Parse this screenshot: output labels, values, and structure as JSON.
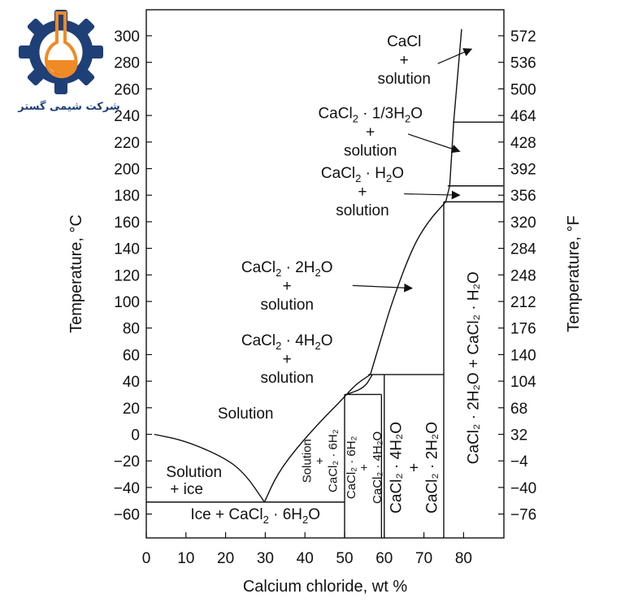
{
  "logo": {
    "text": "شرکت شیمی گستر",
    "gear_color": "#1f3f77",
    "flask_color": "#f08a24"
  },
  "chart_data": {
    "type": "phase-diagram",
    "xlabel": "Calcium chloride, wt %",
    "ylabel_left": "Temperature, °C",
    "ylabel_right": "Temperature, °F",
    "xlim": [
      0,
      90
    ],
    "ylim": [
      -78,
      310
    ],
    "x_ticks": [
      0,
      10,
      20,
      30,
      40,
      50,
      60,
      70,
      80
    ],
    "y_ticks_c": [
      -60,
      -40,
      -20,
      0,
      20,
      40,
      60,
      80,
      100,
      120,
      140,
      160,
      180,
      200,
      220,
      240,
      260,
      280,
      300
    ],
    "y_ticks_f": [
      {
        "c": -60,
        "label": "-76"
      },
      {
        "c": -40,
        "label": "-40"
      },
      {
        "c": -20,
        "label": "-4"
      },
      {
        "c": 0,
        "label": "32"
      },
      {
        "c": 20,
        "label": "68"
      },
      {
        "c": 40,
        "label": "104"
      },
      {
        "c": 60,
        "label": "140"
      },
      {
        "c": 80,
        "label": "176"
      },
      {
        "c": 100,
        "label": "212"
      },
      {
        "c": 120,
        "label": "248"
      },
      {
        "c": 140,
        "label": "284"
      },
      {
        "c": 160,
        "label": "320"
      },
      {
        "c": 180,
        "label": "356"
      },
      {
        "c": 200,
        "label": "392"
      },
      {
        "c": 220,
        "label": "428"
      },
      {
        "c": 240,
        "label": "464"
      },
      {
        "c": 260,
        "label": "500"
      },
      {
        "c": 280,
        "label": "536"
      },
      {
        "c": 300,
        "label": "572"
      }
    ],
    "lines": [
      {
        "name": "ice-liquidus",
        "points": [
          [
            2,
            0
          ],
          [
            10,
            -5
          ],
          [
            20,
            -18
          ],
          [
            25,
            -30
          ],
          [
            29.8,
            -51
          ]
        ]
      },
      {
        "name": "hexahydrate-liquidus",
        "points": [
          [
            29.8,
            -51
          ],
          [
            33,
            -30
          ],
          [
            38,
            -10
          ],
          [
            44,
            10
          ],
          [
            48,
            22
          ],
          [
            50.5,
            30
          ]
        ]
      },
      {
        "name": "hexahydrate-cap",
        "points": [
          [
            50.5,
            30
          ],
          [
            55,
            35
          ],
          [
            57,
            45
          ]
        ]
      },
      {
        "name": "tetrahydrate-liquidus",
        "points": [
          [
            50.5,
            30
          ],
          [
            53,
            38
          ],
          [
            56.5,
            45
          ]
        ]
      },
      {
        "name": "dihydrate-liquidus",
        "points": [
          [
            56.5,
            45
          ],
          [
            59,
            70
          ],
          [
            62,
            100
          ],
          [
            67,
            140
          ],
          [
            71,
            160
          ],
          [
            75.5,
            175
          ]
        ]
      },
      {
        "name": "monohydrate-liquidus",
        "points": [
          [
            75.5,
            175
          ],
          [
            76.5,
            187
          ]
        ]
      },
      {
        "name": "third-hydrate-liquidus",
        "points": [
          [
            76.5,
            187
          ],
          [
            77.5,
            235
          ]
        ]
      },
      {
        "name": "anhydrous-liquidus",
        "points": [
          [
            77.5,
            235
          ],
          [
            79.5,
            305
          ]
        ]
      },
      {
        "name": "eutectic-ice",
        "points": [
          [
            0,
            -51
          ],
          [
            50,
            -51
          ]
        ]
      },
      {
        "name": "peritectic-30",
        "points": [
          [
            50,
            30
          ],
          [
            59.3,
            30
          ]
        ]
      },
      {
        "name": "peritectic-45",
        "points": [
          [
            56,
            45
          ],
          [
            75,
            45
          ]
        ]
      },
      {
        "name": "peritectic-175",
        "points": [
          [
            75,
            175
          ],
          [
            90,
            175
          ]
        ]
      },
      {
        "name": "peritectic-187",
        "points": [
          [
            76,
            187
          ],
          [
            90,
            187
          ]
        ]
      },
      {
        "name": "peritectic-235",
        "points": [
          [
            77.3,
            235
          ],
          [
            90,
            235
          ]
        ]
      },
      {
        "name": "comp-50",
        "points": [
          [
            50,
            -78
          ],
          [
            50,
            30
          ]
        ]
      },
      {
        "name": "comp-59",
        "points": [
          [
            59.3,
            -78
          ],
          [
            59.3,
            30
          ]
        ]
      },
      {
        "name": "comp-60",
        "points": [
          [
            60,
            -78
          ],
          [
            60,
            45
          ]
        ]
      },
      {
        "name": "comp-75",
        "points": [
          [
            75,
            -78
          ],
          [
            75,
            175
          ]
        ]
      }
    ],
    "arrows": [
      {
        "from": [
          73.5,
          279
        ],
        "to": [
          82,
          290
        ]
      },
      {
        "from": [
          66,
          226
        ],
        "to": [
          79,
          213
        ]
      },
      {
        "from": [
          65,
          181
        ],
        "to": [
          79,
          180
        ]
      },
      {
        "from": [
          52,
          112
        ],
        "to": [
          67,
          110
        ]
      }
    ],
    "annotations": [
      {
        "kind": "multi",
        "x": 65,
        "y": 292,
        "lines": [
          "CaCl",
          "+",
          "solution"
        ]
      },
      {
        "kind": "hydrate",
        "x": 56.5,
        "y": 238,
        "formula": {
          "a": "CaCl",
          "b": "2",
          "c": " · 1/3H",
          "d": "2",
          "e": "O"
        },
        "lines": [
          "+",
          "solution"
        ]
      },
      {
        "kind": "hydrate",
        "x": 54.5,
        "y": 193,
        "formula": {
          "a": "CaCl",
          "b": "2",
          "c": " · H",
          "d": "2",
          "e": "O"
        },
        "lines": [
          "+",
          "solution"
        ]
      },
      {
        "kind": "hydrate",
        "x": 35.5,
        "y": 122,
        "formula": {
          "a": "CaCl",
          "b": "2",
          "c": " · 2H",
          "d": "2",
          "e": "O"
        },
        "lines": [
          "+",
          "solution"
        ]
      },
      {
        "kind": "hydrate",
        "x": 35.5,
        "y": 67,
        "formula": {
          "a": "CaCl",
          "b": "2",
          "c": " · 4H",
          "d": "2",
          "e": "O"
        },
        "lines": [
          "+",
          "solution"
        ]
      },
      {
        "kind": "plain",
        "x": 18,
        "y": 12,
        "text": "Solution"
      },
      {
        "kind": "plain",
        "x": 5,
        "y": -32,
        "text": "Solution"
      },
      {
        "kind": "plain",
        "x": 6,
        "y": -45,
        "text": "+ ice"
      },
      {
        "kind": "hydrate-inline",
        "x": 27.5,
        "y": -64,
        "formula": {
          "pre": "Ice + CaCl",
          "b": "2",
          "c": " · 6H",
          "d": "2",
          "e": "O"
        }
      }
    ],
    "vertical_labels": [
      {
        "x": 43.5,
        "y": -20,
        "lines": [
          "Solution",
          "+",
          "CaCl₂ · 6H₂"
        ],
        "size": "small"
      },
      {
        "x": 54.7,
        "y": -25,
        "lines": [
          "CaCl₂ · 6H₂",
          "+",
          "CaCl₂ · 4H₂O"
        ],
        "size": "small"
      },
      {
        "x": 67.5,
        "y": -25,
        "lines": [
          "CaCl₂ · 4H₂O",
          "+",
          "CaCl₂ · 2H₂O"
        ],
        "size": "normal"
      },
      {
        "x": 82.5,
        "y": 50,
        "lines": [
          "CaCl₂ · 2H₂O + CaCl₂ · H₂O"
        ],
        "size": "normal"
      }
    ]
  }
}
